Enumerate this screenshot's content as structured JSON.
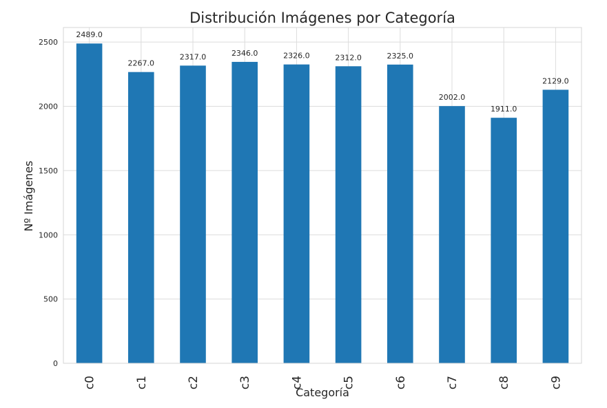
{
  "chart_data": {
    "type": "bar",
    "title": "Distribución Imágenes por Categoría",
    "xlabel": "Categoría",
    "ylabel": "Nº Imágenes",
    "categories": [
      "c0",
      "c1",
      "c2",
      "c3",
      "c4",
      "c5",
      "c6",
      "c7",
      "c8",
      "c9"
    ],
    "values": [
      2489,
      2267,
      2317,
      2346,
      2326,
      2312,
      2325,
      2002,
      1911,
      2129
    ],
    "data_labels": [
      "2489.0",
      "2267.0",
      "2317.0",
      "2346.0",
      "2326.0",
      "2312.0",
      "2325.0",
      "2002.0",
      "1911.0",
      "2129.0"
    ],
    "yticks": [
      0,
      500,
      1000,
      1500,
      2000,
      2500
    ],
    "ytick_labels": [
      "0",
      "500",
      "1000",
      "1500",
      "2000",
      "2500"
    ],
    "ylim": [
      0,
      2613.45
    ],
    "grid": true,
    "legend": false,
    "bar_color": "#1f77b4"
  }
}
